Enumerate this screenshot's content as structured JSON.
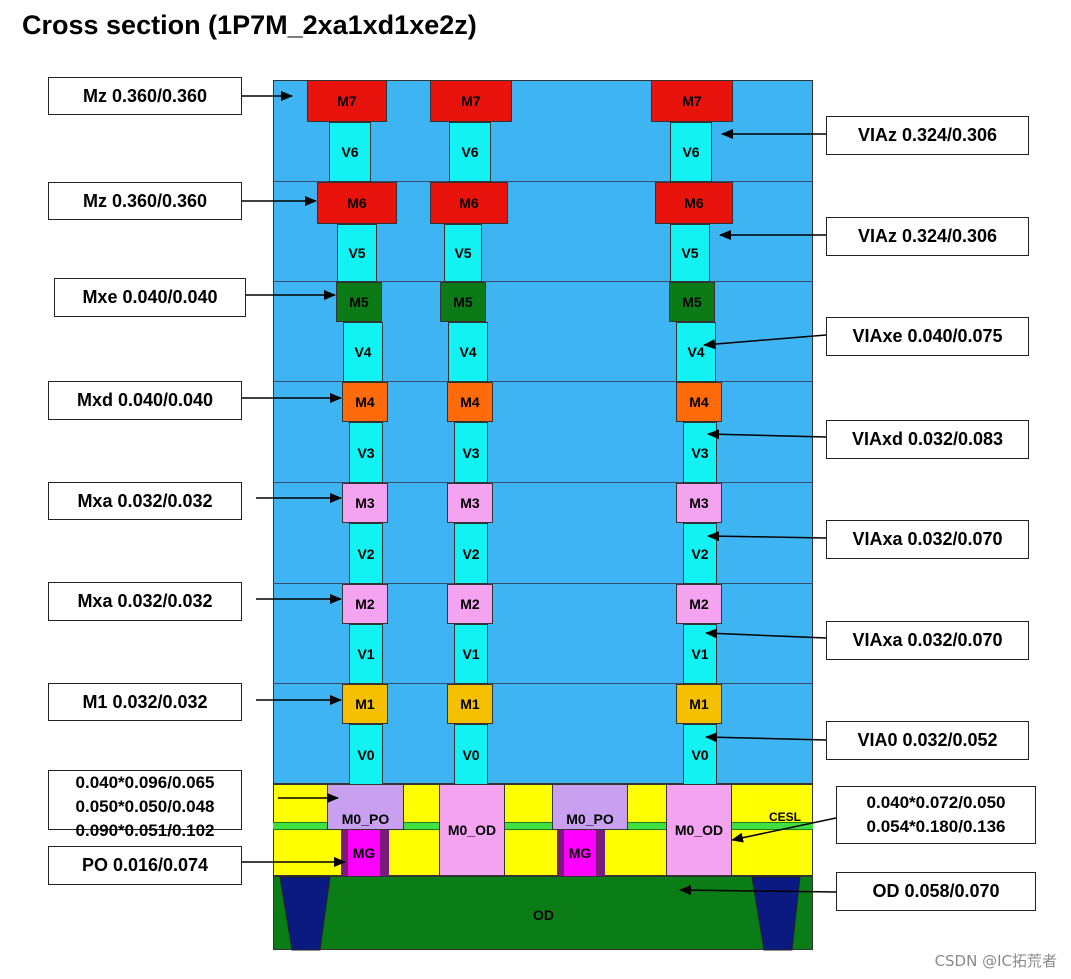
{
  "title": "Cross section (1P7M_2xa1xd1xe2z)",
  "layers": {
    "m7": "M7",
    "v6": "V6",
    "m6": "M6",
    "v5": "V5",
    "m5": "M5",
    "v4": "V4",
    "m4": "M4",
    "v3": "V3",
    "m3": "M3",
    "v2": "V2",
    "m2": "M2",
    "v1": "V1",
    "m1": "M1",
    "v0": "V0",
    "m0_po": "M0_PO",
    "m0_od": "M0_OD",
    "mg": "MG",
    "cesl": "CESL",
    "od": "OD"
  },
  "left_labels": {
    "m7": "Mz  0.360/0.360",
    "m6": "Mz  0.360/0.360",
    "m5": "Mxe  0.040/0.040",
    "m4": "Mxd  0.040/0.040",
    "m3": "Mxa  0.032/0.032",
    "m2": "Mxa  0.032/0.032",
    "m1": "M1  0.032/0.032",
    "m0_po": [
      "0.040*0.096/0.065",
      "0.050*0.050/0.048",
      "0.090*0.051/0.102"
    ],
    "po": "PO 0.016/0.074"
  },
  "right_labels": {
    "v6": "VIAz 0.324/0.306",
    "v5": "VIAz 0.324/0.306",
    "v4": "VIAxe 0.040/0.075",
    "v3": "VIAxd 0.032/0.083",
    "v2": "VIAxa 0.032/0.070",
    "v1": "VIAxa 0.032/0.070",
    "v0": "VIA0 0.032/0.052",
    "m0_od": [
      "0.040*0.072/0.050",
      "0.054*0.180/0.136"
    ],
    "od": "OD 0.058/0.070"
  },
  "watermark": "CSDN @IC拓荒者",
  "colors": {
    "dielectric": "#3eb4f2",
    "m7_m6": "#e8130c",
    "m5": "#0b7a17",
    "m4": "#ff6a0a",
    "m3_m2": "#f3a3f0",
    "m1": "#f5c000",
    "via": "#13f2f2",
    "m0_po": "#c9a0f0",
    "m0_od": "#f3a3f0",
    "fe_fill": "#ffff00",
    "cesl": "#40e040",
    "mg": "#ff00ff",
    "od": "#0a7d16",
    "sti": "#0a1a80"
  }
}
